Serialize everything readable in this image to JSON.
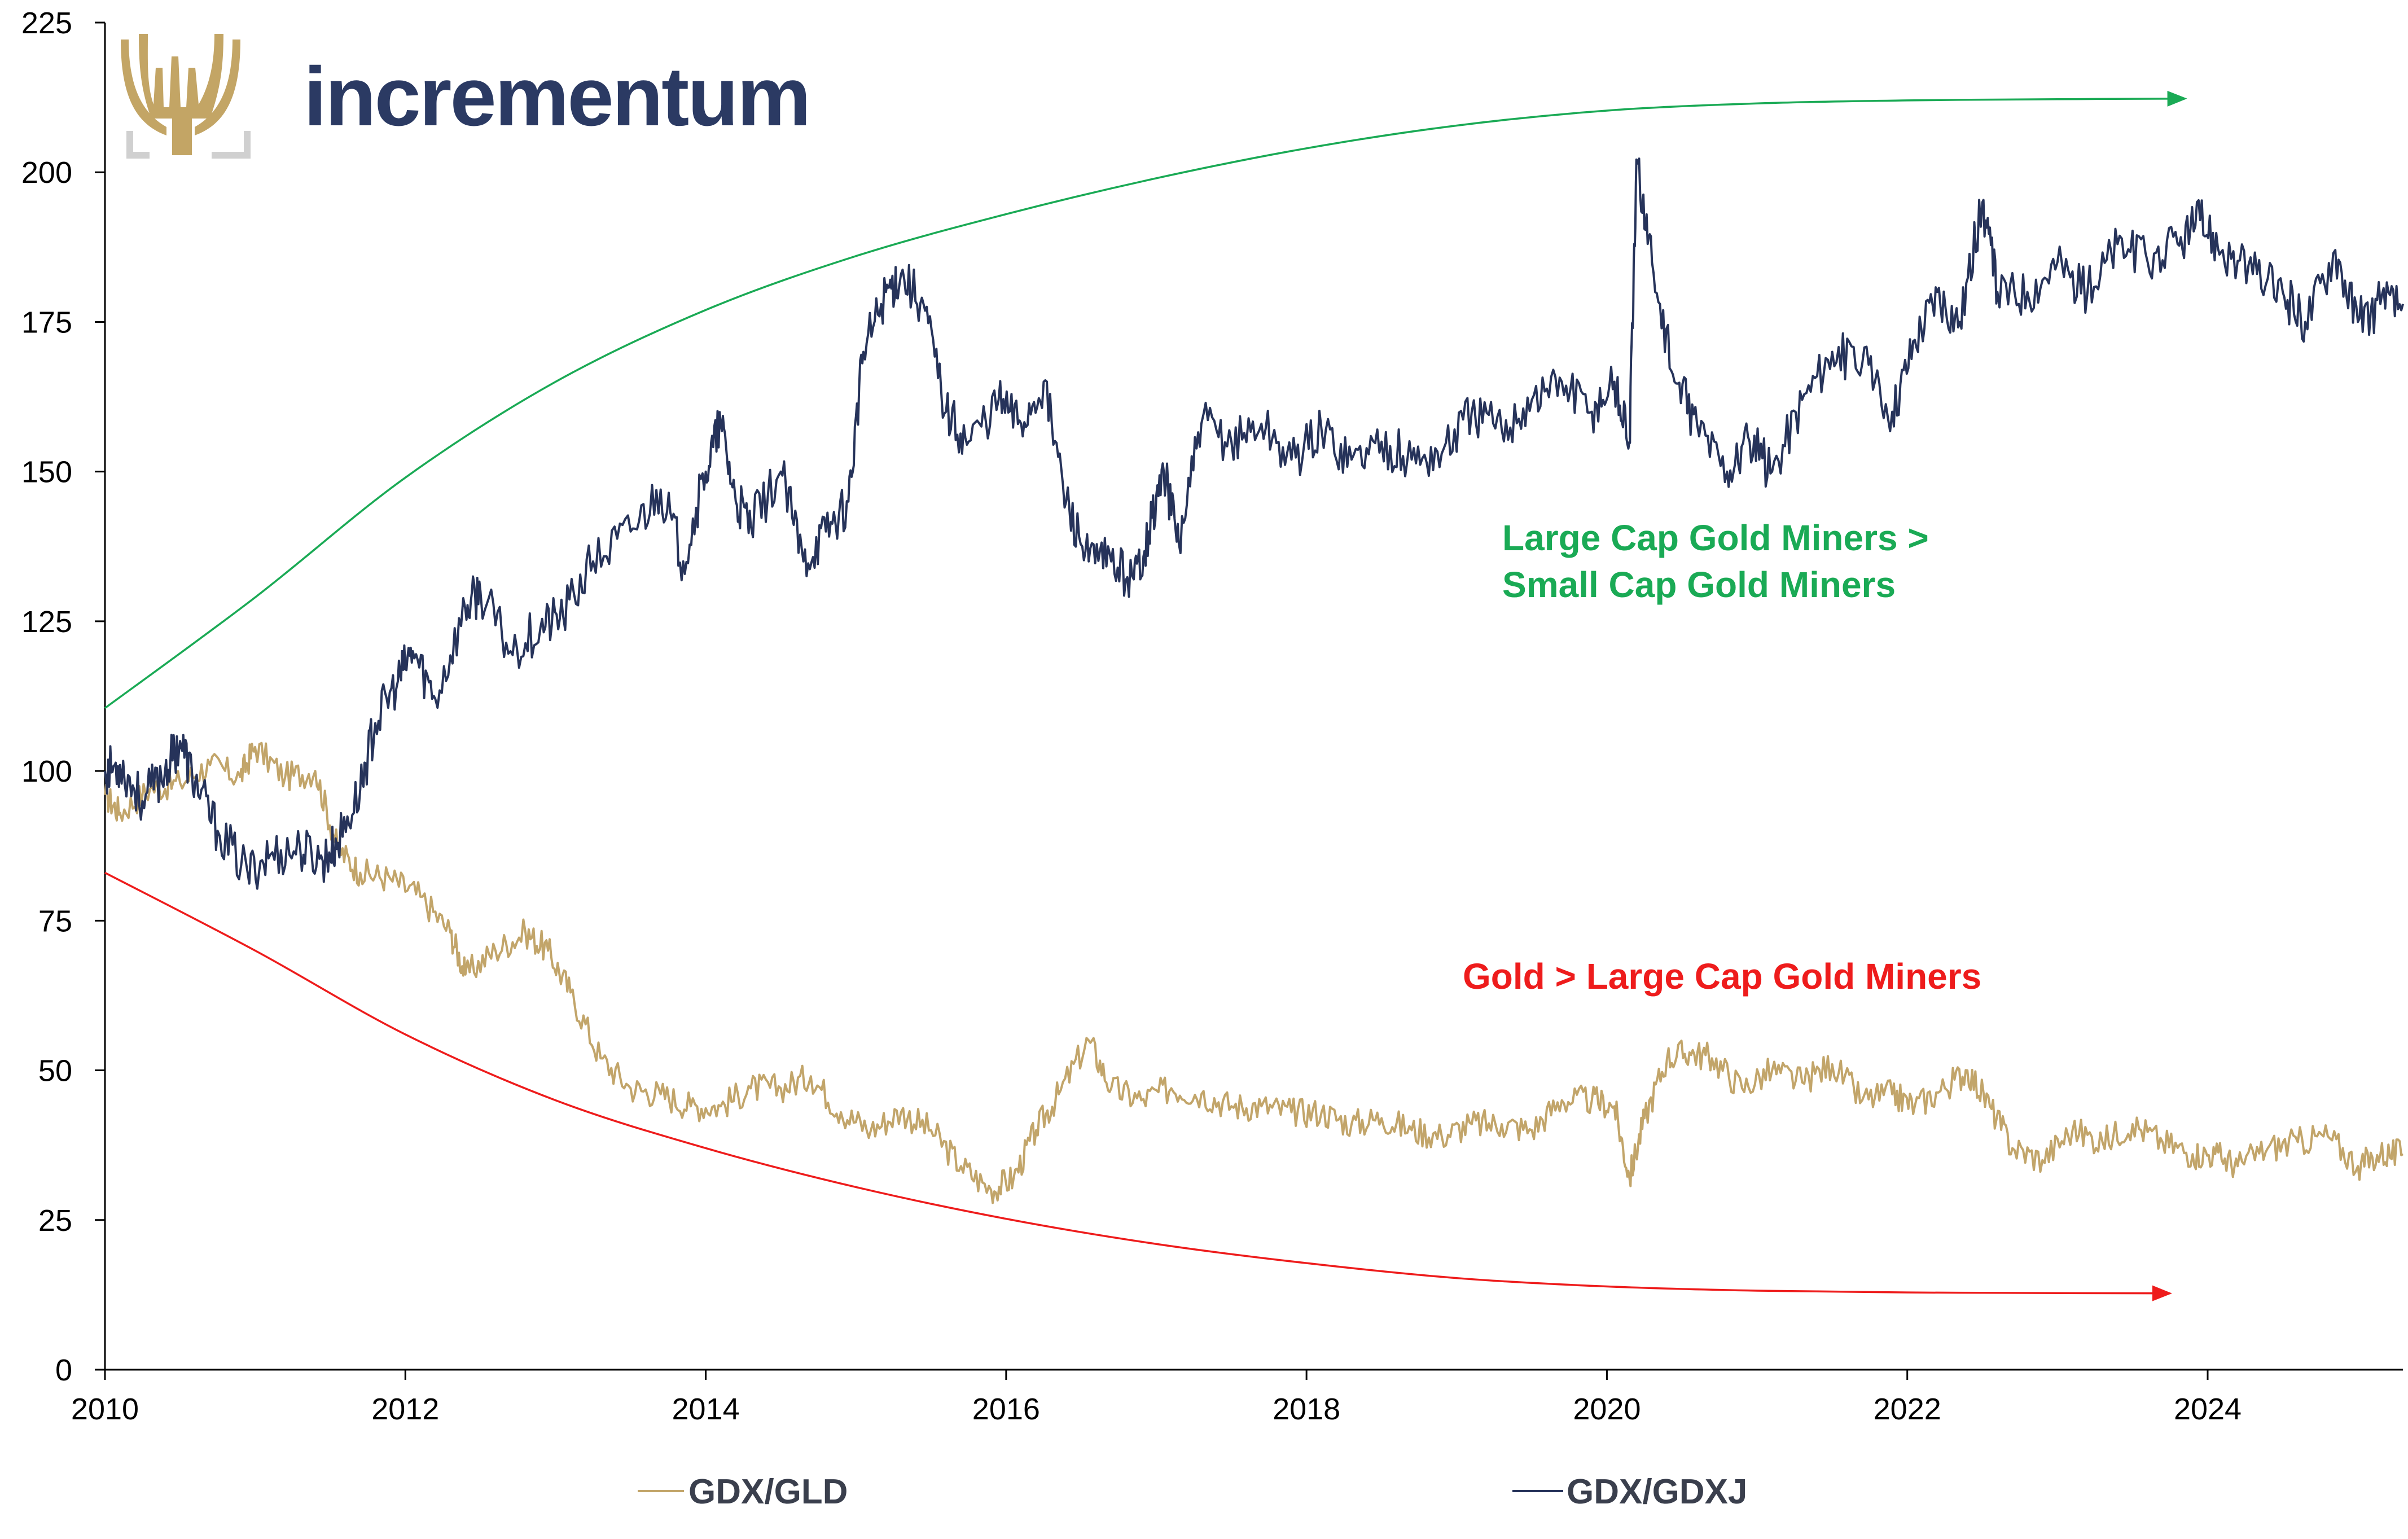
{
  "brand": {
    "name": "incrementum",
    "color": "#2b3a63",
    "logo_color": "#c3a565"
  },
  "annotations": {
    "large_vs_small_line1": "Large Cap Gold Miners >",
    "large_vs_small_line2": "Small Cap Gold Miners",
    "gold_vs_large": "Gold > Large Cap Gold Miners"
  },
  "colors": {
    "gdx_gld": "#c2a56a",
    "gdx_gdxj": "#26335a",
    "up_arrow": "#1aaa55",
    "down_arrow": "#ee1c1c"
  },
  "chart_data": {
    "type": "line",
    "title": "",
    "xlabel": "",
    "ylabel": "",
    "xlim": [
      2010,
      2025.3
    ],
    "ylim": [
      0,
      225
    ],
    "x_ticks": [
      2010,
      2012,
      2014,
      2016,
      2018,
      2020,
      2022,
      2024
    ],
    "y_ticks": [
      0,
      25,
      50,
      75,
      100,
      125,
      150,
      175,
      200,
      225
    ],
    "grid": false,
    "legend": "bottom",
    "series": [
      {
        "name": "GDX/GLD",
        "x": [
          2010.0,
          2010.1,
          2010.3,
          2010.5,
          2010.7,
          2010.9,
          2011.0,
          2011.2,
          2011.4,
          2011.55,
          2011.7,
          2011.9,
          2012.1,
          2012.3,
          2012.4,
          2012.6,
          2012.8,
          2012.95,
          2013.1,
          2013.3,
          2013.5,
          2013.7,
          2013.9,
          2014.1,
          2014.3,
          2014.5,
          2014.7,
          2014.9,
          2015.1,
          2015.3,
          2015.5,
          2015.7,
          2015.9,
          2016.05,
          2016.2,
          2016.35,
          2016.55,
          2016.7,
          2016.9,
          2017.1,
          2017.3,
          2017.5,
          2017.7,
          2017.9,
          2018.1,
          2018.3,
          2018.5,
          2018.7,
          2018.9,
          2019.1,
          2019.3,
          2019.5,
          2019.7,
          2019.9,
          2020.05,
          2020.15,
          2020.25,
          2020.4,
          2020.55,
          2020.7,
          2020.9,
          2021.1,
          2021.3,
          2021.5,
          2021.7,
          2021.9,
          2022.05,
          2022.25,
          2022.4,
          2022.55,
          2022.7,
          2022.9,
          2023.1,
          2023.3,
          2023.5,
          2023.7,
          2023.9,
          2024.05,
          2024.2,
          2024.4,
          2024.6,
          2024.8,
          2025.0,
          2025.15,
          2025.3
        ],
        "values": [
          96,
          93,
          97,
          98,
          101,
          99,
          104,
          99,
          100,
          87,
          83,
          82,
          79,
          73,
          66,
          70,
          73,
          70,
          63,
          52,
          47,
          46,
          44,
          44,
          47,
          47,
          49,
          43,
          40,
          43,
          40,
          34,
          30,
          32,
          40,
          46,
          55,
          47,
          45,
          47,
          46,
          44,
          44,
          43,
          43,
          41,
          42,
          40,
          39,
          41,
          41,
          40,
          45,
          45,
          44,
          32,
          42,
          52,
          53,
          52,
          47,
          50,
          48,
          51,
          45,
          46,
          44,
          47,
          50,
          44,
          37,
          35,
          40,
          38,
          41,
          38,
          36,
          36,
          34,
          37,
          38,
          39,
          34,
          36,
          36
        ]
      },
      {
        "name": "GDX/GDXJ",
        "x": [
          2010.0,
          2010.1,
          2010.25,
          2010.4,
          2010.5,
          2010.6,
          2010.75,
          2010.95,
          2011.1,
          2011.3,
          2011.45,
          2011.55,
          2011.7,
          2011.8,
          2011.95,
          2012.05,
          2012.2,
          2012.4,
          2012.5,
          2012.7,
          2012.9,
          2013.05,
          2013.25,
          2013.5,
          2013.7,
          2013.85,
          2014.0,
          2014.1,
          2014.2,
          2014.3,
          2014.5,
          2014.65,
          2014.8,
          2014.95,
          2015.05,
          2015.2,
          2015.3,
          2015.45,
          2015.6,
          2015.75,
          2015.95,
          2016.1,
          2016.25,
          2016.4,
          2016.55,
          2016.7,
          2016.85,
          2016.95,
          2017.05,
          2017.15,
          2017.3,
          2017.5,
          2017.7,
          2017.9,
          2018.1,
          2018.3,
          2018.5,
          2018.7,
          2018.9,
          2019.1,
          2019.3,
          2019.5,
          2019.7,
          2019.9,
          2020.05,
          2020.15,
          2020.2,
          2020.3,
          2020.45,
          2020.6,
          2020.8,
          2020.95,
          2021.1,
          2021.3,
          2021.5,
          2021.7,
          2021.9,
          2022.05,
          2022.2,
          2022.35,
          2022.5,
          2022.6,
          2022.8,
          2023.0,
          2023.2,
          2023.4,
          2023.6,
          2023.8,
          2023.95,
          2024.1,
          2024.3,
          2024.5,
          2024.65,
          2024.85,
          2025.0,
          2025.15,
          2025.3
        ],
        "values": [
          100,
          101,
          95,
          100,
          105,
          98,
          90,
          83,
          86,
          87,
          85,
          88,
          97,
          108,
          115,
          120,
          112,
          127,
          130,
          120,
          124,
          126,
          135,
          140,
          147,
          135,
          150,
          158,
          145,
          141,
          150,
          135,
          140,
          145,
          170,
          180,
          183,
          178,
          160,
          155,
          162,
          158,
          165,
          145,
          135,
          135,
          132,
          140,
          150,
          138,
          158,
          155,
          158,
          152,
          157,
          152,
          155,
          152,
          153,
          160,
          157,
          162,
          165,
          160,
          165,
          155,
          202,
          185,
          165,
          158,
          150,
          155,
          150,
          162,
          170,
          168,
          160,
          172,
          180,
          175,
          195,
          180,
          180,
          185,
          180,
          188,
          185,
          188,
          192,
          187,
          183,
          180,
          175,
          187,
          175,
          178,
          178
        ]
      }
    ],
    "trend_arrows": [
      {
        "name": "up",
        "x": [
          2010.0,
          2011.0,
          2012.0,
          2013.0,
          2014.0,
          2015.0,
          2016.0,
          2017.0,
          2018.0,
          2019.0,
          2020.0,
          2021.0,
          2022.0,
          2023.0,
          2023.85
        ],
        "values": [
          110.5,
          129,
          149,
          165,
          177,
          186,
          193,
          199,
          204,
          207.8,
          210.3,
          211.5,
          212.0,
          212.2,
          212.3
        ]
      },
      {
        "name": "down",
        "x": [
          2010.0,
          2011.0,
          2012.0,
          2013.0,
          2014.0,
          2015.0,
          2016.0,
          2017.0,
          2018.0,
          2019.0,
          2020.0,
          2021.0,
          2022.0,
          2023.0,
          2023.75
        ],
        "values": [
          83,
          70,
          56,
          45,
          37,
          30.5,
          25.2,
          21,
          17.8,
          15.3,
          13.9,
          13.2,
          12.9,
          12.8,
          12.75
        ]
      }
    ]
  },
  "legend": {
    "gdx_gld": "GDX/GLD",
    "gdx_gdxj": "GDX/GDXJ"
  }
}
